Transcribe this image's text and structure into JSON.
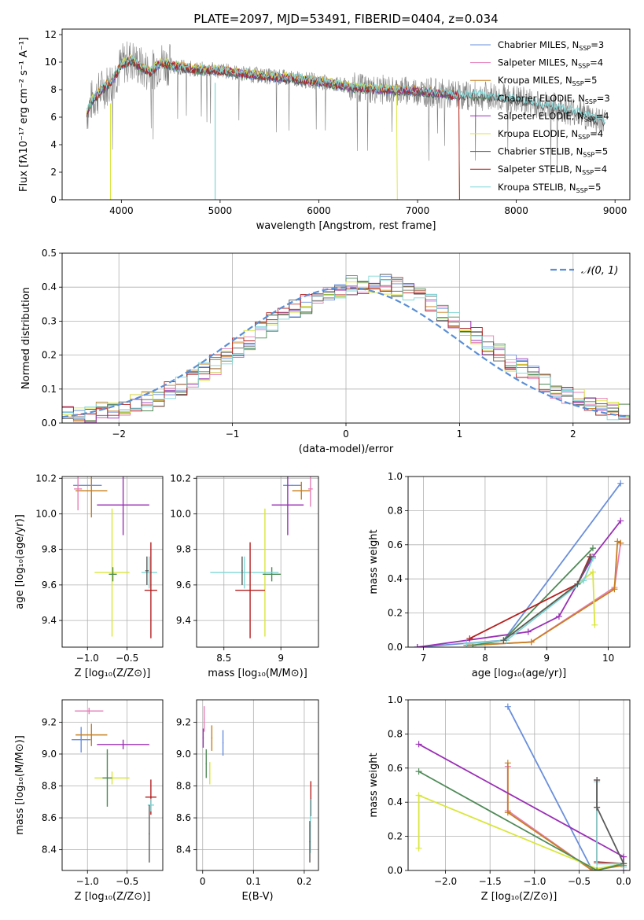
{
  "figure_title": "PLATE=2097, MJD=53491, FIBERID=0404, z=0.034",
  "colors": {
    "Chabrier MILES": "#6a8fdc",
    "Salpeter MILES": "#e67fb8",
    "Kroupa MILES": "#c77f1f",
    "Chabrier ELODIE": "#4f8a57",
    "Salpeter ELODIE": "#9a30b5",
    "Kroupa ELODIE": "#d9e63c",
    "Chabrier STELIB": "#5a5a5a",
    "Salpeter STELIB": "#b41f1f",
    "Kroupa STELIB": "#7fd6d6",
    "orange_fit": "#e8803a",
    "green_fit": "#6fb33a",
    "gaussian": "#5a8fd6",
    "observed": "#808080"
  },
  "chart_data": [
    {
      "id": "spectrum",
      "type": "line",
      "title": "PLATE=2097, MJD=53491, FIBERID=0404, z=0.034",
      "xlabel": "wavelength [Angstrom, rest frame]",
      "ylabel": "Flux [fλ10⁻¹⁷ erg cm⁻² s⁻¹ A⁻¹]",
      "xlim": [
        3400,
        9150
      ],
      "ylim": [
        0,
        12.4
      ],
      "xticks": [
        4000,
        5000,
        6000,
        7000,
        8000,
        9000
      ],
      "yticks": [
        0,
        2,
        4,
        6,
        8,
        10,
        12
      ],
      "grid": false,
      "legend_position": "top-right",
      "legend": [
        {
          "name": "Chabrier MILES",
          "nssp": "3"
        },
        {
          "name": "Salpeter MILES",
          "nssp": "4"
        },
        {
          "name": "Kroupa MILES",
          "nssp": "5"
        },
        {
          "name": "Chabrier ELODIE",
          "nssp": "3"
        },
        {
          "name": "Salpeter ELODIE",
          "nssp": "4"
        },
        {
          "name": "Kroupa ELODIE",
          "nssp": "4"
        },
        {
          "name": "Chabrier STELIB",
          "nssp": "5"
        },
        {
          "name": "Salpeter STELIB",
          "nssp": "4"
        },
        {
          "name": "Kroupa STELIB",
          "nssp": "5"
        }
      ],
      "continuum": {
        "x": [
          3650,
          3700,
          3800,
          3900,
          4000,
          4100,
          4200,
          4300,
          4400,
          4500,
          4700,
          5000,
          5300,
          5600,
          6000,
          6300,
          6600,
          7000,
          7400,
          7800,
          8200,
          8600,
          8900
        ],
        "y": [
          6.3,
          7.2,
          8.0,
          8.6,
          9.8,
          10.2,
          9.6,
          9.3,
          10.0,
          9.8,
          9.5,
          9.4,
          9.1,
          8.9,
          8.6,
          8.2,
          8.0,
          7.9,
          7.6,
          7.5,
          7.0,
          6.4,
          5.6
        ]
      }
    },
    {
      "id": "residual_histogram",
      "type": "bar",
      "xlabel": "(data-model)/error",
      "ylabel": "Normed distribution",
      "xlim": [
        -2.5,
        2.5
      ],
      "ylim": [
        0,
        0.5
      ],
      "xticks": [
        -2,
        -1,
        0,
        1,
        2
      ],
      "yticks": [
        0.0,
        0.1,
        0.2,
        0.3,
        0.4,
        0.5
      ],
      "grid": true,
      "legend_position": "top-right",
      "legend_label": "𝒩(0, 1)",
      "bin_width": 0.1,
      "bin_edges_start": -2.5,
      "mean_heights": [
        0.02,
        0.025,
        0.028,
        0.032,
        0.038,
        0.045,
        0.055,
        0.065,
        0.078,
        0.092,
        0.108,
        0.128,
        0.148,
        0.172,
        0.198,
        0.222,
        0.245,
        0.27,
        0.295,
        0.315,
        0.335,
        0.352,
        0.368,
        0.382,
        0.395,
        0.405,
        0.41,
        0.412,
        0.408,
        0.4,
        0.388,
        0.372,
        0.352,
        0.33,
        0.305,
        0.28,
        0.255,
        0.23,
        0.205,
        0.182,
        0.16,
        0.14,
        0.12,
        0.1,
        0.085,
        0.07,
        0.057,
        0.046,
        0.036,
        0.028
      ]
    },
    {
      "id": "age_vs_Z",
      "type": "scatter",
      "xlabel": "Z [log₁₀(Z/Z⊙)]",
      "ylabel": "age  [log₁₀(age/yr)]",
      "xlim": [
        -1.32,
        -0.05
      ],
      "ylim": [
        9.25,
        10.21
      ],
      "xticks": [
        -1.0,
        -0.5
      ],
      "xticklabels": [
        "−1.0",
        "−0.5"
      ],
      "yticks": [
        9.4,
        9.6,
        9.8,
        10.0,
        10.2
      ],
      "grid": true,
      "points": [
        {
          "series": "Chabrier MILES",
          "x": -1.0,
          "y": 10.16,
          "xerr": 0.18,
          "yerr": 0.0
        },
        {
          "series": "Kroupa MILES",
          "x": -0.95,
          "y": 10.13,
          "xerr": 0.2,
          "yerr": 0.15
        },
        {
          "series": "Salpeter MILES",
          "x": -1.12,
          "y": 10.14,
          "xerr": 0.05,
          "yerr": 0.12
        },
        {
          "series": "Salpeter ELODIE",
          "x": -0.55,
          "y": 10.05,
          "xerr": 0.33,
          "yerr": 0.17
        },
        {
          "series": "Kroupa ELODIE",
          "x": -0.69,
          "y": 9.67,
          "xerr": 0.22,
          "yerr": 0.36
        },
        {
          "series": "Chabrier ELODIE",
          "x": -0.68,
          "y": 9.66,
          "xerr": 0.05,
          "yerr": 0.04
        },
        {
          "series": "Kroupa STELIB",
          "x": -0.22,
          "y": 9.67,
          "xerr": 0.1,
          "yerr": 0.09
        },
        {
          "series": "Chabrier STELIB",
          "x": -0.25,
          "y": 9.68,
          "xerr": 0.02,
          "yerr": 0.08
        },
        {
          "series": "Salpeter STELIB",
          "x": -0.2,
          "y": 9.57,
          "xerr": 0.08,
          "yerr": 0.27
        }
      ]
    },
    {
      "id": "age_vs_mass",
      "type": "scatter",
      "xlabel": "mass [log₁₀(M/M⊙)]",
      "ylabel": "",
      "xlim": [
        8.26,
        9.33
      ],
      "ylim": [
        9.25,
        10.21
      ],
      "xticks": [
        8.5,
        9.0
      ],
      "yticks": [
        9.4,
        9.6,
        9.8,
        10.0,
        10.2
      ],
      "grid": true,
      "points": [
        {
          "series": "Chabrier MILES",
          "x": 9.1,
          "y": 10.16,
          "xerr": 0.08,
          "yerr": 0.0
        },
        {
          "series": "Kroupa MILES",
          "x": 9.18,
          "y": 10.13,
          "xerr": 0.08,
          "yerr": 0.05
        },
        {
          "series": "Salpeter MILES",
          "x": 9.26,
          "y": 10.14,
          "xerr": 0.02,
          "yerr": 0.1
        },
        {
          "series": "Salpeter ELODIE",
          "x": 9.06,
          "y": 10.05,
          "xerr": 0.14,
          "yerr": 0.17
        },
        {
          "series": "Kroupa ELODIE",
          "x": 8.86,
          "y": 9.67,
          "xerr": 0.0,
          "yerr": 0.36
        },
        {
          "series": "Chabrier ELODIE",
          "x": 8.92,
          "y": 9.66,
          "xerr": 0.08,
          "yerr": 0.04
        },
        {
          "series": "Kroupa STELIB",
          "x": 8.68,
          "y": 9.67,
          "xerr": 0.3,
          "yerr": 0.09
        },
        {
          "series": "Chabrier STELIB",
          "x": 8.66,
          "y": 9.68,
          "xerr": 0.0,
          "yerr": 0.08
        },
        {
          "series": "Salpeter STELIB",
          "x": 8.73,
          "y": 9.57,
          "xerr": 0.13,
          "yerr": 0.27
        }
      ]
    },
    {
      "id": "weight_vs_age",
      "type": "line",
      "xlabel": "age  [log₁₀(age/yr)]",
      "ylabel": "mass weight",
      "xlim": [
        6.75,
        10.35
      ],
      "ylim": [
        0,
        1.0
      ],
      "xticks": [
        7,
        8,
        9,
        10
      ],
      "yticks": [
        0.0,
        0.2,
        0.4,
        0.6,
        0.8,
        1.0
      ],
      "grid": true,
      "series": [
        {
          "name": "Chabrier MILES",
          "x": [
            6.9,
            8.3,
            10.2
          ],
          "y": [
            0.0,
            0.04,
            0.96
          ]
        },
        {
          "name": "Salpeter MILES",
          "x": [
            7.7,
            8.75,
            10.1,
            10.2
          ],
          "y": [
            0.01,
            0.03,
            0.35,
            0.61
          ]
        },
        {
          "name": "Kroupa MILES",
          "x": [
            7.7,
            8.75,
            10.1,
            10.15,
            10.2
          ],
          "y": [
            0.01,
            0.03,
            0.34,
            0.62,
            0.61
          ]
        },
        {
          "name": "Salpeter ELODIE",
          "x": [
            6.9,
            8.7,
            9.2,
            9.75,
            10.2
          ],
          "y": [
            0.0,
            0.09,
            0.18,
            0.53,
            0.74
          ]
        },
        {
          "name": "Kroupa ELODIE",
          "x": [
            7.8,
            8.3,
            9.75,
            9.78
          ],
          "y": [
            0.01,
            0.04,
            0.44,
            0.13
          ]
        },
        {
          "name": "Chabrier ELODIE",
          "x": [
            7.8,
            8.3,
            9.75
          ],
          "y": [
            0.01,
            0.04,
            0.58
          ]
        },
        {
          "name": "Salpeter STELIB",
          "x": [
            7.75,
            9.5,
            9.7
          ],
          "y": [
            0.05,
            0.37,
            0.53
          ]
        },
        {
          "name": "Kroupa STELIB",
          "x": [
            7.7,
            8.35,
            9.6,
            9.75
          ],
          "y": [
            0.02,
            0.04,
            0.39,
            0.52
          ]
        },
        {
          "name": "Chabrier STELIB",
          "x": [
            8.3,
            9.5,
            9.72
          ],
          "y": [
            0.04,
            0.37,
            0.53
          ]
        }
      ]
    },
    {
      "id": "mass_vs_Z",
      "type": "scatter",
      "xlabel": "Z [log₁₀(Z/Z⊙)]",
      "ylabel": "mass [log₁₀(M/M⊙)]",
      "xlim": [
        -1.32,
        -0.05
      ],
      "ylim": [
        8.27,
        9.34
      ],
      "xticks": [
        -1.0,
        -0.5
      ],
      "xticklabels": [
        "−1.0",
        "−0.5"
      ],
      "yticks": [
        8.4,
        8.6,
        8.8,
        9.0,
        9.2
      ],
      "grid": true,
      "points": [
        {
          "series": "Chabrier MILES",
          "x": -1.08,
          "y": 9.09,
          "xerr": 0.12,
          "yerr": 0.08
        },
        {
          "series": "Kroupa MILES",
          "x": -0.95,
          "y": 9.12,
          "xerr": 0.2,
          "yerr": 0.07
        },
        {
          "series": "Salpeter MILES",
          "x": -0.98,
          "y": 9.27,
          "xerr": 0.18,
          "yerr": 0.02
        },
        {
          "series": "Salpeter ELODIE",
          "x": -0.55,
          "y": 9.06,
          "xerr": 0.33,
          "yerr": 0.03
        },
        {
          "series": "Kroupa ELODIE",
          "x": -0.69,
          "y": 8.85,
          "xerr": 0.22,
          "yerr": 0.04
        },
        {
          "series": "Chabrier ELODIE",
          "x": -0.75,
          "y": 8.85,
          "xerr": 0.06,
          "yerr": 0.18
        },
        {
          "series": "Salpeter STELIB",
          "x": -0.2,
          "y": 8.73,
          "xerr": 0.07,
          "yerr": 0.11
        },
        {
          "series": "Kroupa STELIB",
          "x": -0.2,
          "y": 8.68,
          "xerr": 0.04,
          "yerr": 0.04
        },
        {
          "series": "Chabrier STELIB",
          "x": -0.22,
          "y": 8.5,
          "xerr": 0.0,
          "yerr": 0.18
        }
      ]
    },
    {
      "id": "mass_vs_ebv",
      "type": "scatter",
      "xlabel": "E(B-V)",
      "ylabel": "",
      "xlim": [
        -0.012,
        0.228
      ],
      "ylim": [
        8.27,
        9.34
      ],
      "xticks": [
        0.0,
        0.1,
        0.2
      ],
      "yticks": [
        8.4,
        8.6,
        8.8,
        9.0,
        9.2
      ],
      "grid": true,
      "points": [
        {
          "series": "Salpeter MILES",
          "x": 0.003,
          "y": 9.22,
          "yerr": 0.08
        },
        {
          "series": "Kroupa MILES",
          "x": 0.018,
          "y": 9.1,
          "yerr": 0.08
        },
        {
          "series": "Chabrier MILES",
          "x": 0.04,
          "y": 9.07,
          "yerr": 0.08
        },
        {
          "series": "Salpeter ELODIE",
          "x": 0.001,
          "y": 9.1,
          "yerr": 0.06
        },
        {
          "series": "Chabrier ELODIE",
          "x": 0.007,
          "y": 8.94,
          "yerr": 0.09
        },
        {
          "series": "Kroupa ELODIE",
          "x": 0.014,
          "y": 8.88,
          "yerr": 0.07
        },
        {
          "series": "Salpeter STELIB",
          "x": 0.213,
          "y": 8.72,
          "yerr": 0.11
        },
        {
          "series": "Kroupa STELIB",
          "x": 0.212,
          "y": 8.55,
          "yerr": 0.17
        },
        {
          "series": "Chabrier STELIB",
          "x": 0.211,
          "y": 8.45,
          "yerr": 0.13
        }
      ]
    },
    {
      "id": "weight_vs_Z",
      "type": "line",
      "xlabel": "Z [log₁₀(Z/Z⊙)]",
      "ylabel": "mass weight",
      "xlim": [
        -2.42,
        0.07
      ],
      "ylim": [
        0,
        1.0
      ],
      "xticks": [
        -2.0,
        -1.5,
        -1.0,
        -0.5,
        0.0
      ],
      "xticklabels": [
        "−2.0",
        "−1.5",
        "−1.0",
        "−0.5",
        "0.0"
      ],
      "yticks": [
        0.0,
        0.2,
        0.4,
        0.6,
        0.8,
        1.0
      ],
      "grid": true,
      "series": [
        {
          "name": "Chabrier MILES",
          "x": [
            -1.3,
            -0.35,
            0.0
          ],
          "y": [
            0.96,
            0.0,
            0.04
          ]
        },
        {
          "name": "Salpeter MILES",
          "x": [
            -1.3,
            -1.3,
            -0.35
          ],
          "y": [
            0.61,
            0.35,
            0.0
          ]
        },
        {
          "name": "Kroupa MILES",
          "x": [
            -1.3,
            -1.3,
            -0.35,
            0.0
          ],
          "y": [
            0.63,
            0.34,
            0.0,
            0.03
          ]
        },
        {
          "name": "Salpeter ELODIE",
          "x": [
            -2.3,
            0.0,
            0.0
          ],
          "y": [
            0.74,
            0.08,
            0.0
          ]
        },
        {
          "name": "Kroupa ELODIE",
          "x": [
            -2.3,
            -2.3,
            -0.3,
            0.0
          ],
          "y": [
            0.13,
            0.44,
            0.01,
            0.04
          ]
        },
        {
          "name": "Chabrier ELODIE",
          "x": [
            -2.3,
            -0.3,
            0.0
          ],
          "y": [
            0.58,
            0.0,
            0.04
          ]
        },
        {
          "name": "Salpeter STELIB",
          "x": [
            -0.3,
            -0.3,
            -0.3,
            0.0
          ],
          "y": [
            0.53,
            0.37,
            0.05,
            0.04
          ]
        },
        {
          "name": "Kroupa STELIB",
          "x": [
            -0.3,
            -0.3,
            0.0,
            0.0
          ],
          "y": [
            0.52,
            0.04,
            0.04,
            0.02
          ]
        },
        {
          "name": "Chabrier STELIB",
          "x": [
            -0.3,
            -0.3,
            0.0
          ],
          "y": [
            0.53,
            0.37,
            0.04
          ]
        }
      ]
    }
  ]
}
